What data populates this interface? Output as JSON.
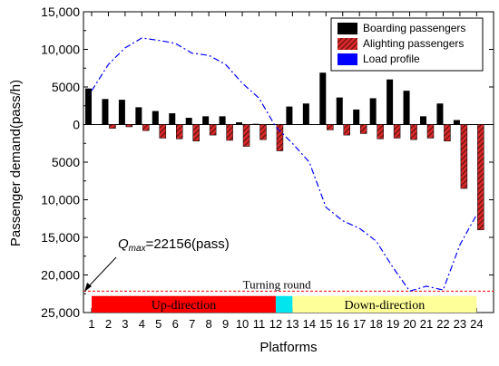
{
  "chart_data": {
    "type": "bar",
    "xlabel": "Platforms",
    "ylabel": "Passenger demand(pass/h)",
    "categories": [
      "1",
      "2",
      "3",
      "4",
      "5",
      "6",
      "7",
      "8",
      "9",
      "10",
      "11",
      "12",
      "13",
      "14",
      "15",
      "16",
      "17",
      "18",
      "19",
      "20",
      "21",
      "22",
      "23",
      "24"
    ],
    "y_axis": {
      "range": [
        -25000,
        15000
      ],
      "tick_values": [
        15000,
        10000,
        5000,
        0,
        -5000,
        -10000,
        -15000,
        -20000,
        -25000
      ],
      "tick_labels": [
        "15,000",
        "10,000",
        "5000",
        "0",
        "5000",
        "10,000",
        "15,000",
        "20,000",
        "25,000"
      ]
    },
    "series": [
      {
        "name": "Boarding passengers",
        "color": "#000000",
        "values": [
          4800,
          3400,
          3300,
          2300,
          1800,
          1500,
          900,
          1100,
          1100,
          300,
          100,
          0,
          2400,
          2800,
          6900,
          3600,
          2000,
          3500,
          6000,
          4500,
          1100,
          2800,
          600,
          0
        ]
      },
      {
        "name": "Alighting passengers",
        "color": "#d62728",
        "values": [
          0,
          -500,
          -300,
          -800,
          -1800,
          -1900,
          -2200,
          -1400,
          -2100,
          -2900,
          -2000,
          -3500,
          0,
          0,
          -700,
          -1400,
          -1200,
          -1900,
          -1800,
          -2000,
          -1800,
          -2200,
          -8500,
          -14000
        ]
      },
      {
        "name": "Load profile",
        "color": "#0000ff",
        "line_values": [
          4500,
          8000,
          10200,
          11500,
          11200,
          10800,
          9500,
          9200,
          8000,
          5500,
          3500,
          -300,
          -2500,
          -5000,
          -11000,
          -12800,
          -13800,
          -15500,
          -19000,
          -22156,
          -21500,
          -22000,
          -16000,
          -12000
        ]
      }
    ],
    "legend_position": "top-right",
    "annotations": {
      "qmax_symbol": "Q",
      "qmax_subscript": "max",
      "qmax_text": "=22156(pass)",
      "qmax_value": -22156,
      "turning_label": "Turning round"
    },
    "direction_bar": {
      "up_label": "Up-direction",
      "up_color": "#ff0000",
      "up_range": [
        1,
        12
      ],
      "turn_color": "#00e5ee",
      "turn_range": [
        12,
        13
      ],
      "down_label": "Down-direction",
      "down_color": "#ffff99",
      "down_range": [
        13,
        24
      ]
    }
  }
}
